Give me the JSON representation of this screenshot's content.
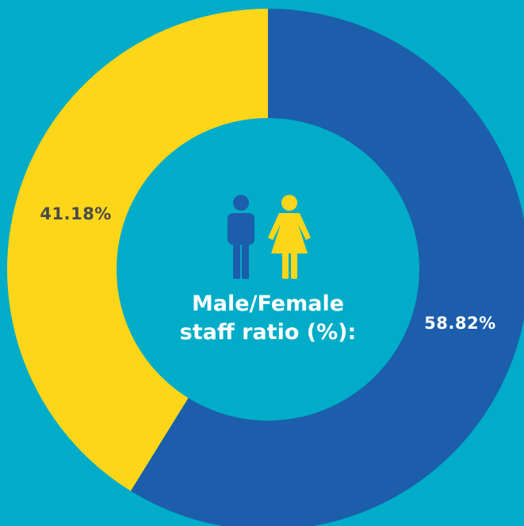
{
  "chart_data": {
    "type": "donut",
    "title": "Male/Female staff ratio (%):",
    "values": [
      58.82,
      41.18
    ],
    "value_labels": [
      "58.82%",
      "41.18%"
    ],
    "colors": [
      "#1c5eab",
      "#fdd619"
    ],
    "start_angle": 0,
    "direction": "clockwise"
  }
}
